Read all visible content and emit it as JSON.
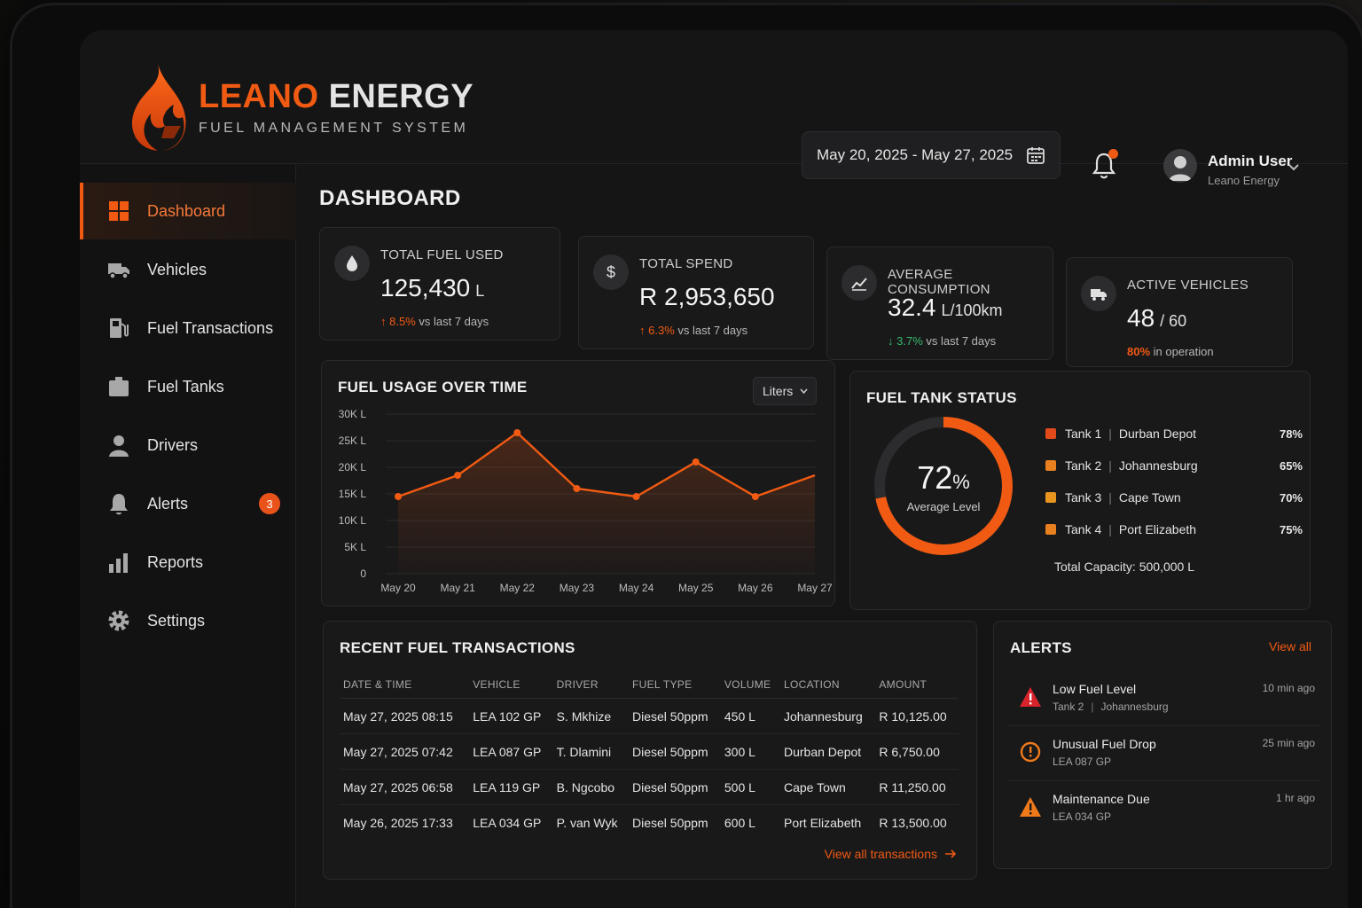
{
  "brand": {
    "name_part1": "LEANO",
    "name_part2": "ENERGY",
    "subtitle": "FUEL MANAGEMENT SYSTEM"
  },
  "header": {
    "date_range": "May 20, 2025 - May 27, 2025",
    "notification_badge": "1",
    "user_name": "Admin User",
    "user_org": "Leano Energy"
  },
  "sidebar": {
    "items": [
      {
        "label": "Dashboard",
        "icon": "grid-icon",
        "active": true
      },
      {
        "label": "Vehicles",
        "icon": "truck-icon"
      },
      {
        "label": "Fuel Transactions",
        "icon": "fuel-pump-icon"
      },
      {
        "label": "Fuel Tanks",
        "icon": "tank-icon"
      },
      {
        "label": "Drivers",
        "icon": "user-icon"
      },
      {
        "label": "Alerts",
        "icon": "bell-icon",
        "badge": "3"
      },
      {
        "label": "Reports",
        "icon": "bar-chart-icon"
      },
      {
        "label": "Settings",
        "icon": "gear-icon"
      }
    ]
  },
  "page_title": "DASHBOARD",
  "stats": [
    {
      "label": "TOTAL FUEL USED",
      "value": "125,430",
      "unit": "L",
      "delta": "8.5%",
      "delta_dir": "up",
      "delta_text": "vs last 7 days",
      "icon": "droplet-icon"
    },
    {
      "label": "TOTAL SPEND",
      "value": "R 2,953,650",
      "unit": "",
      "delta": "6.3%",
      "delta_dir": "up",
      "delta_text": "vs last 7 days",
      "icon": "dollar-icon"
    },
    {
      "label": "AVERAGE CONSUMPTION",
      "value": "32.4",
      "unit": "L/100km",
      "delta": "3.7%",
      "delta_dir": "down",
      "delta_text": "vs last 7 days",
      "icon": "trend-icon"
    },
    {
      "label": "ACTIVE VEHICLES",
      "value": "48",
      "unit": "/ 60",
      "delta": "80%",
      "delta_dir": "neutral",
      "delta_text": "in operation",
      "icon": "truck-icon"
    }
  ],
  "fuel_usage": {
    "title": "FUEL USAGE OVER TIME",
    "unit_select": "Liters"
  },
  "chart_data": {
    "type": "line",
    "title": "FUEL USAGE OVER TIME",
    "categories": [
      "May 20",
      "May 21",
      "May 22",
      "May 23",
      "May 24",
      "May 25",
      "May 26",
      "May 27"
    ],
    "series": [
      {
        "values": [
          14500,
          18500,
          26500,
          16000,
          14500,
          21000,
          14500,
          18500
        ]
      }
    ],
    "y_ticks": [
      "0",
      "5K L",
      "10K L",
      "15K L",
      "20K L",
      "25K L",
      "30K L"
    ],
    "ylim": [
      0,
      30000
    ],
    "grid": true,
    "color": "#f05a12"
  },
  "tank_status": {
    "title": "FUEL TANK STATUS",
    "average_pct": 72,
    "average_pct_text": "72",
    "pct_sign": "%",
    "average_label": "Average Level",
    "tanks": [
      {
        "name": "Tank 1",
        "location": "Durban Depot",
        "pct": "78%",
        "color": "#e24a1c"
      },
      {
        "name": "Tank 2",
        "location": "Johannesburg",
        "pct": "65%",
        "color": "#e8801f"
      },
      {
        "name": "Tank 3",
        "location": "Cape Town",
        "pct": "70%",
        "color": "#e8961f"
      },
      {
        "name": "Tank 4",
        "location": "Port Elizabeth",
        "pct": "75%",
        "color": "#e8801f"
      }
    ],
    "total_capacity": "Total Capacity: 500,000 L"
  },
  "transactions": {
    "title": "RECENT FUEL TRANSACTIONS",
    "columns": [
      "DATE & TIME",
      "VEHICLE",
      "DRIVER",
      "FUEL TYPE",
      "VOLUME",
      "LOCATION",
      "AMOUNT"
    ],
    "rows": [
      [
        "May 27, 2025 08:15",
        "LEA 102 GP",
        "S. Mkhize",
        "Diesel 50ppm",
        "450 L",
        "Johannesburg",
        "R 10,125.00"
      ],
      [
        "May 27, 2025 07:42",
        "LEA 087 GP",
        "T. Dlamini",
        "Diesel 50ppm",
        "300 L",
        "Durban Depot",
        "R 6,750.00"
      ],
      [
        "May 27, 2025 06:58",
        "LEA 119 GP",
        "B. Ngcobo",
        "Diesel 50ppm",
        "500 L",
        "Cape Town",
        "R 11,250.00"
      ],
      [
        "May 26, 2025 17:33",
        "LEA 034 GP",
        "P. van Wyk",
        "Diesel 50ppm",
        "600 L",
        "Port Elizabeth",
        "R 13,500.00"
      ]
    ],
    "view_all": "View all transactions"
  },
  "alerts": {
    "title": "ALERTS",
    "view_all": "View all",
    "items": [
      {
        "title": "Low Fuel Level",
        "sub_a": "Tank 2",
        "sub_b": "Johannesburg",
        "time": "10 min ago",
        "icon": "warning-red-icon"
      },
      {
        "title": "Unusual Fuel Drop",
        "sub_a": "LEA 087 GP",
        "sub_b": "",
        "time": "25 min ago",
        "icon": "alert-circle-icon"
      },
      {
        "title": "Maintenance Due",
        "sub_a": "LEA 034 GP",
        "sub_b": "",
        "time": "1 hr ago",
        "icon": "warning-orange-icon"
      }
    ]
  }
}
